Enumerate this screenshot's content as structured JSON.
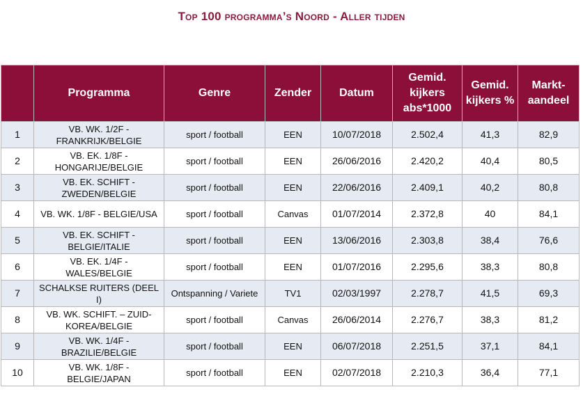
{
  "title": "Top 100 programma’s Noord - Aller tijden",
  "headers": {
    "rank": "",
    "programma": "Programma",
    "genre": "Genre",
    "zender": "Zender",
    "datum": "Datum",
    "abs": "Gemid. kijkers abs*1000",
    "pct": "Gemid. kijkers %",
    "markt": "Markt-aandeel"
  },
  "rows": [
    {
      "rank": "1",
      "programma": "VB. WK. 1/2F - FRANKRIJK/BELGIE",
      "genre": "sport / football",
      "zender": "EEN",
      "datum": "10/07/2018",
      "abs": "2.502,4",
      "pct": "41,3",
      "markt": "82,9"
    },
    {
      "rank": "2",
      "programma": "VB. EK. 1/8F - HONGARIJE/BELGIE",
      "genre": "sport / football",
      "zender": "EEN",
      "datum": "26/06/2016",
      "abs": "2.420,2",
      "pct": "40,4",
      "markt": "80,5"
    },
    {
      "rank": "3",
      "programma": "VB. EK. SCHIFT - ZWEDEN/BELGIE",
      "genre": "sport / football",
      "zender": "EEN",
      "datum": "22/06/2016",
      "abs": "2.409,1",
      "pct": "40,2",
      "markt": "80,8"
    },
    {
      "rank": "4",
      "programma": "VB. WK. 1/8F - BELGIE/USA",
      "genre": "sport / football",
      "zender": "Canvas",
      "datum": "01/07/2014",
      "abs": "2.372,8",
      "pct": "40",
      "markt": "84,1"
    },
    {
      "rank": "5",
      "programma": "VB. EK. SCHIFT - BELGIE/ITALIE",
      "genre": "sport / football",
      "zender": "EEN",
      "datum": "13/06/2016",
      "abs": "2.303,8",
      "pct": "38,4",
      "markt": "76,6"
    },
    {
      "rank": "6",
      "programma": "VB. EK. 1/4F - WALES/BELGIE",
      "genre": "sport / football",
      "zender": "EEN",
      "datum": "01/07/2016",
      "abs": "2.295,6",
      "pct": "38,3",
      "markt": "80,8"
    },
    {
      "rank": "7",
      "programma": "SCHALKSE RUITERS (DEEL I)",
      "genre": "Ontspanning / Variete",
      "zender": "TV1",
      "datum": "02/03/1997",
      "abs": "2.278,7",
      "pct": "41,5",
      "markt": "69,3"
    },
    {
      "rank": "8",
      "programma": "VB. WK. SCHIFT. – ZUID-KOREA/BELGIE",
      "genre": "sport / football",
      "zender": "Canvas",
      "datum": "26/06/2014",
      "abs": "2.276,7",
      "pct": "38,3",
      "markt": "81,2"
    },
    {
      "rank": "9",
      "programma": "VB. WK. 1/4F - BRAZILIE/BELGIE",
      "genre": "sport / football",
      "zender": "EEN",
      "datum": "06/07/2018",
      "abs": "2.251,5",
      "pct": "37,1",
      "markt": "84,1"
    },
    {
      "rank": "10",
      "programma": "VB. WK. 1/8F - BELGIE/JAPAN",
      "genre": "sport / football",
      "zender": "EEN",
      "datum": "02/07/2018",
      "abs": "2.210,3",
      "pct": "36,4",
      "markt": "77,1"
    }
  ]
}
